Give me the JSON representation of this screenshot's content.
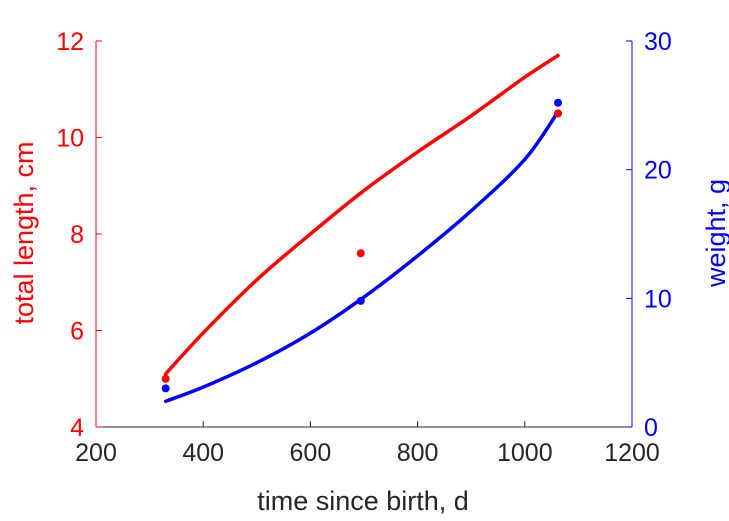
{
  "chart_data": {
    "type": "scatter",
    "xlabel": "time since birth, d",
    "ylabel_left": "total length, cm",
    "ylabel_right": "weight, g",
    "xlim": [
      200,
      1200
    ],
    "ylim_left": [
      4,
      12
    ],
    "ylim_right": [
      0,
      30
    ],
    "x_ticks": [
      200,
      400,
      600,
      800,
      1000,
      1200
    ],
    "y_left_ticks": [
      4,
      6,
      8,
      10,
      12
    ],
    "y_right_ticks": [
      0,
      10,
      20,
      30
    ],
    "grid": false,
    "series": [
      {
        "axis": "left",
        "color": "#ff0000",
        "points": {
          "x": [
            330,
            694,
            1062
          ],
          "y": [
            5.0,
            7.6,
            10.5
          ]
        },
        "fit": {
          "x": [
            330,
            400,
            500,
            600,
            700,
            800,
            900,
            1000,
            1062
          ],
          "y": [
            5.1,
            5.95,
            7.05,
            8.0,
            8.9,
            9.7,
            10.45,
            11.25,
            11.7
          ]
        }
      },
      {
        "axis": "right",
        "color": "#0000ff",
        "points": {
          "x": [
            330,
            694,
            1062
          ],
          "y": [
            3.0,
            9.8,
            25.2
          ]
        },
        "fit": {
          "x": [
            330,
            400,
            500,
            600,
            700,
            800,
            900,
            1000,
            1062
          ],
          "y": [
            2.0,
            3.1,
            5.0,
            7.3,
            10.1,
            13.3,
            16.8,
            20.8,
            24.5
          ]
        }
      }
    ]
  }
}
